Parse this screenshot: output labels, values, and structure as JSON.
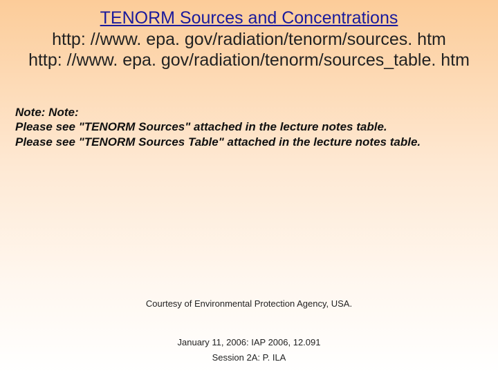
{
  "background": {
    "gradient_top": "#fccc99",
    "gradient_mid": "#fee9d4",
    "gradient_bottom": "#ffffff"
  },
  "title": {
    "text": "TENORM Sources and Concentrations",
    "color": "#1a1a9c",
    "fontsize": 25,
    "underline": true
  },
  "urls": {
    "line1": "http: //www. epa. gov/radiation/tenorm/sources. htm",
    "line2": "http: //www. epa. gov/radiation/tenorm/sources_table. htm",
    "color": "#222222",
    "fontsize": 25
  },
  "note": {
    "line1": "Note: Note:",
    "line2": "Please see \"TENORM Sources\" attached in the lecture notes table.",
    "line3": "Please see \"TENORM Sources Table\" attached in the lecture notes table.",
    "color": "#111111",
    "fontsize": 17,
    "italic": true,
    "bold": true
  },
  "courtesy": {
    "text": "Courtesy of Environmental Protection Agency, USA.",
    "fontsize": 13
  },
  "footer": {
    "line1": "January 11, 2006: IAP 2006, 12.091",
    "line2": "Session 2A: P. ILA",
    "fontsize": 13
  }
}
